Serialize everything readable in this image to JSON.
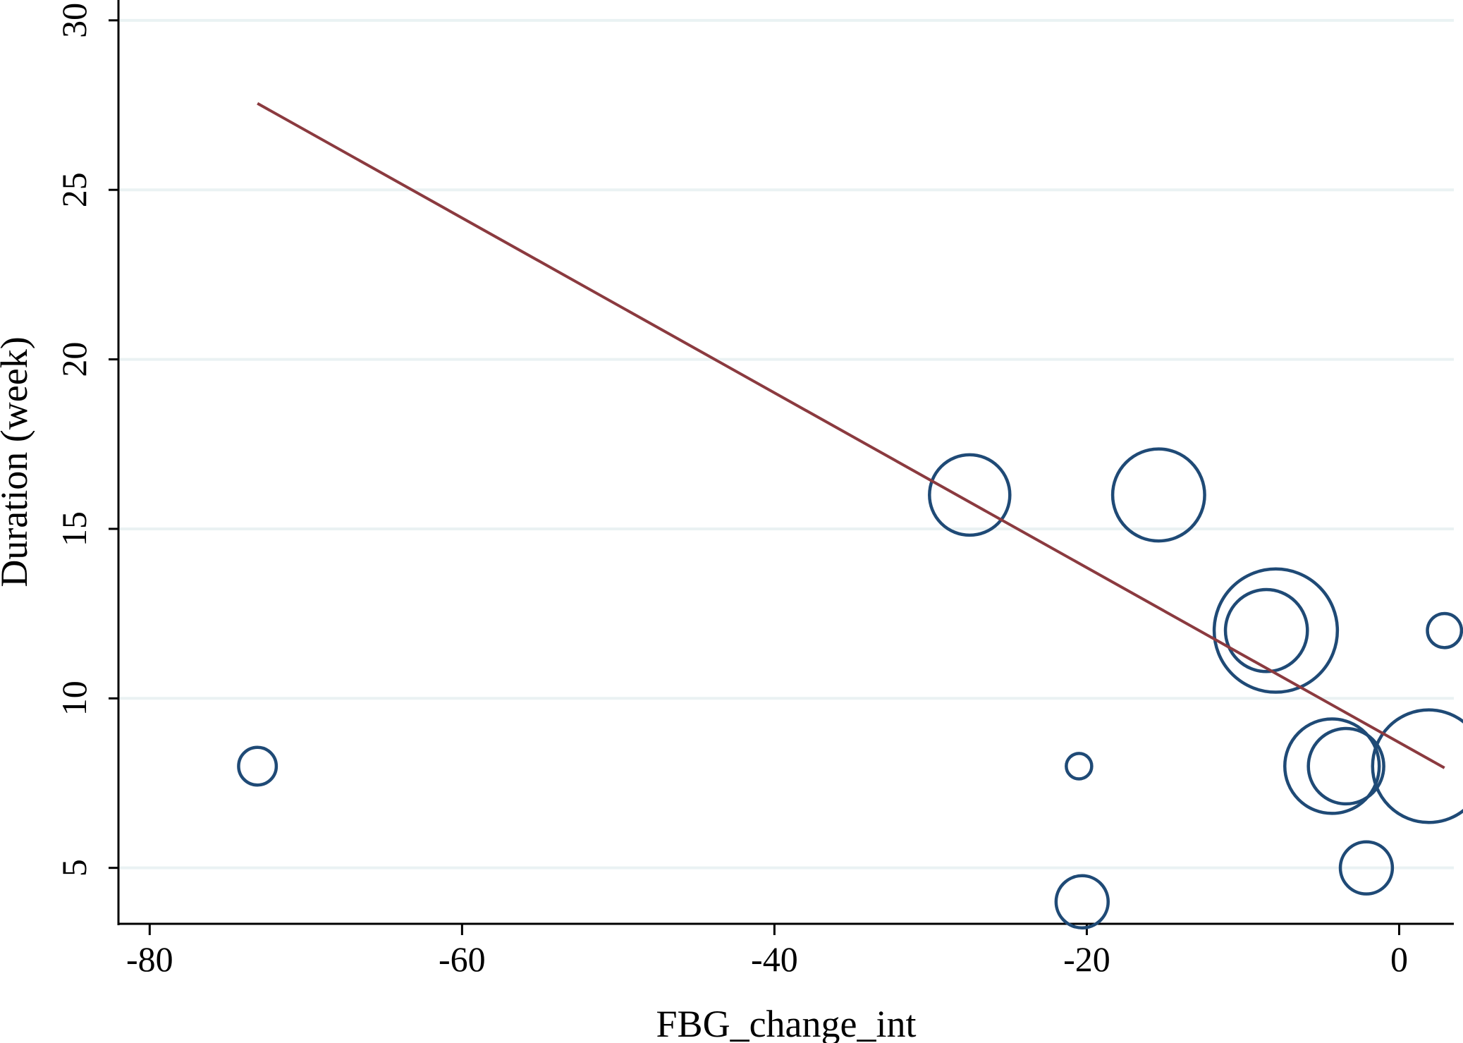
{
  "chart_data": {
    "type": "scatter",
    "xlabel": "FBG_change_int",
    "ylabel": "Duration (week)",
    "xlim": [
      -82,
      3.5
    ],
    "ylim": [
      3.35,
      30.6
    ],
    "x_ticks": [
      -80,
      -60,
      -40,
      -20,
      0
    ],
    "x_tick_labels": [
      "-80",
      "-60",
      "-40",
      "-20",
      "0"
    ],
    "y_ticks": [
      5,
      10,
      15,
      20,
      25,
      30
    ],
    "y_tick_labels": [
      "5",
      "10",
      "15",
      "20",
      "25",
      "30"
    ],
    "grid": true,
    "bubble_color": "#1f4a76",
    "line_color": "#8b3a3f",
    "grid_color": "#eaf2f3",
    "points": [
      {
        "x": -73.1,
        "y": 8,
        "weight": 0.22
      },
      {
        "x": -27.5,
        "y": 16,
        "weight": 1.0
      },
      {
        "x": -20.5,
        "y": 8,
        "weight": 0.1
      },
      {
        "x": -20.3,
        "y": 4,
        "weight": 0.42
      },
      {
        "x": -15.4,
        "y": 16,
        "weight": 1.31
      },
      {
        "x": -7.9,
        "y": 12,
        "weight": 2.35
      },
      {
        "x": -8.5,
        "y": 12,
        "weight": 1.04
      },
      {
        "x": -4.3,
        "y": 8,
        "weight": 1.38
      },
      {
        "x": -3.4,
        "y": 8,
        "weight": 0.88
      },
      {
        "x": -2.1,
        "y": 5,
        "weight": 0.42
      },
      {
        "x": 1.9,
        "y": 8,
        "weight": 1.96
      },
      {
        "x": 2.9,
        "y": 12,
        "weight": 0.18
      }
    ],
    "fit_line": {
      "x": [
        -73.1,
        2.9
      ],
      "y": [
        27.55,
        7.95
      ]
    }
  }
}
